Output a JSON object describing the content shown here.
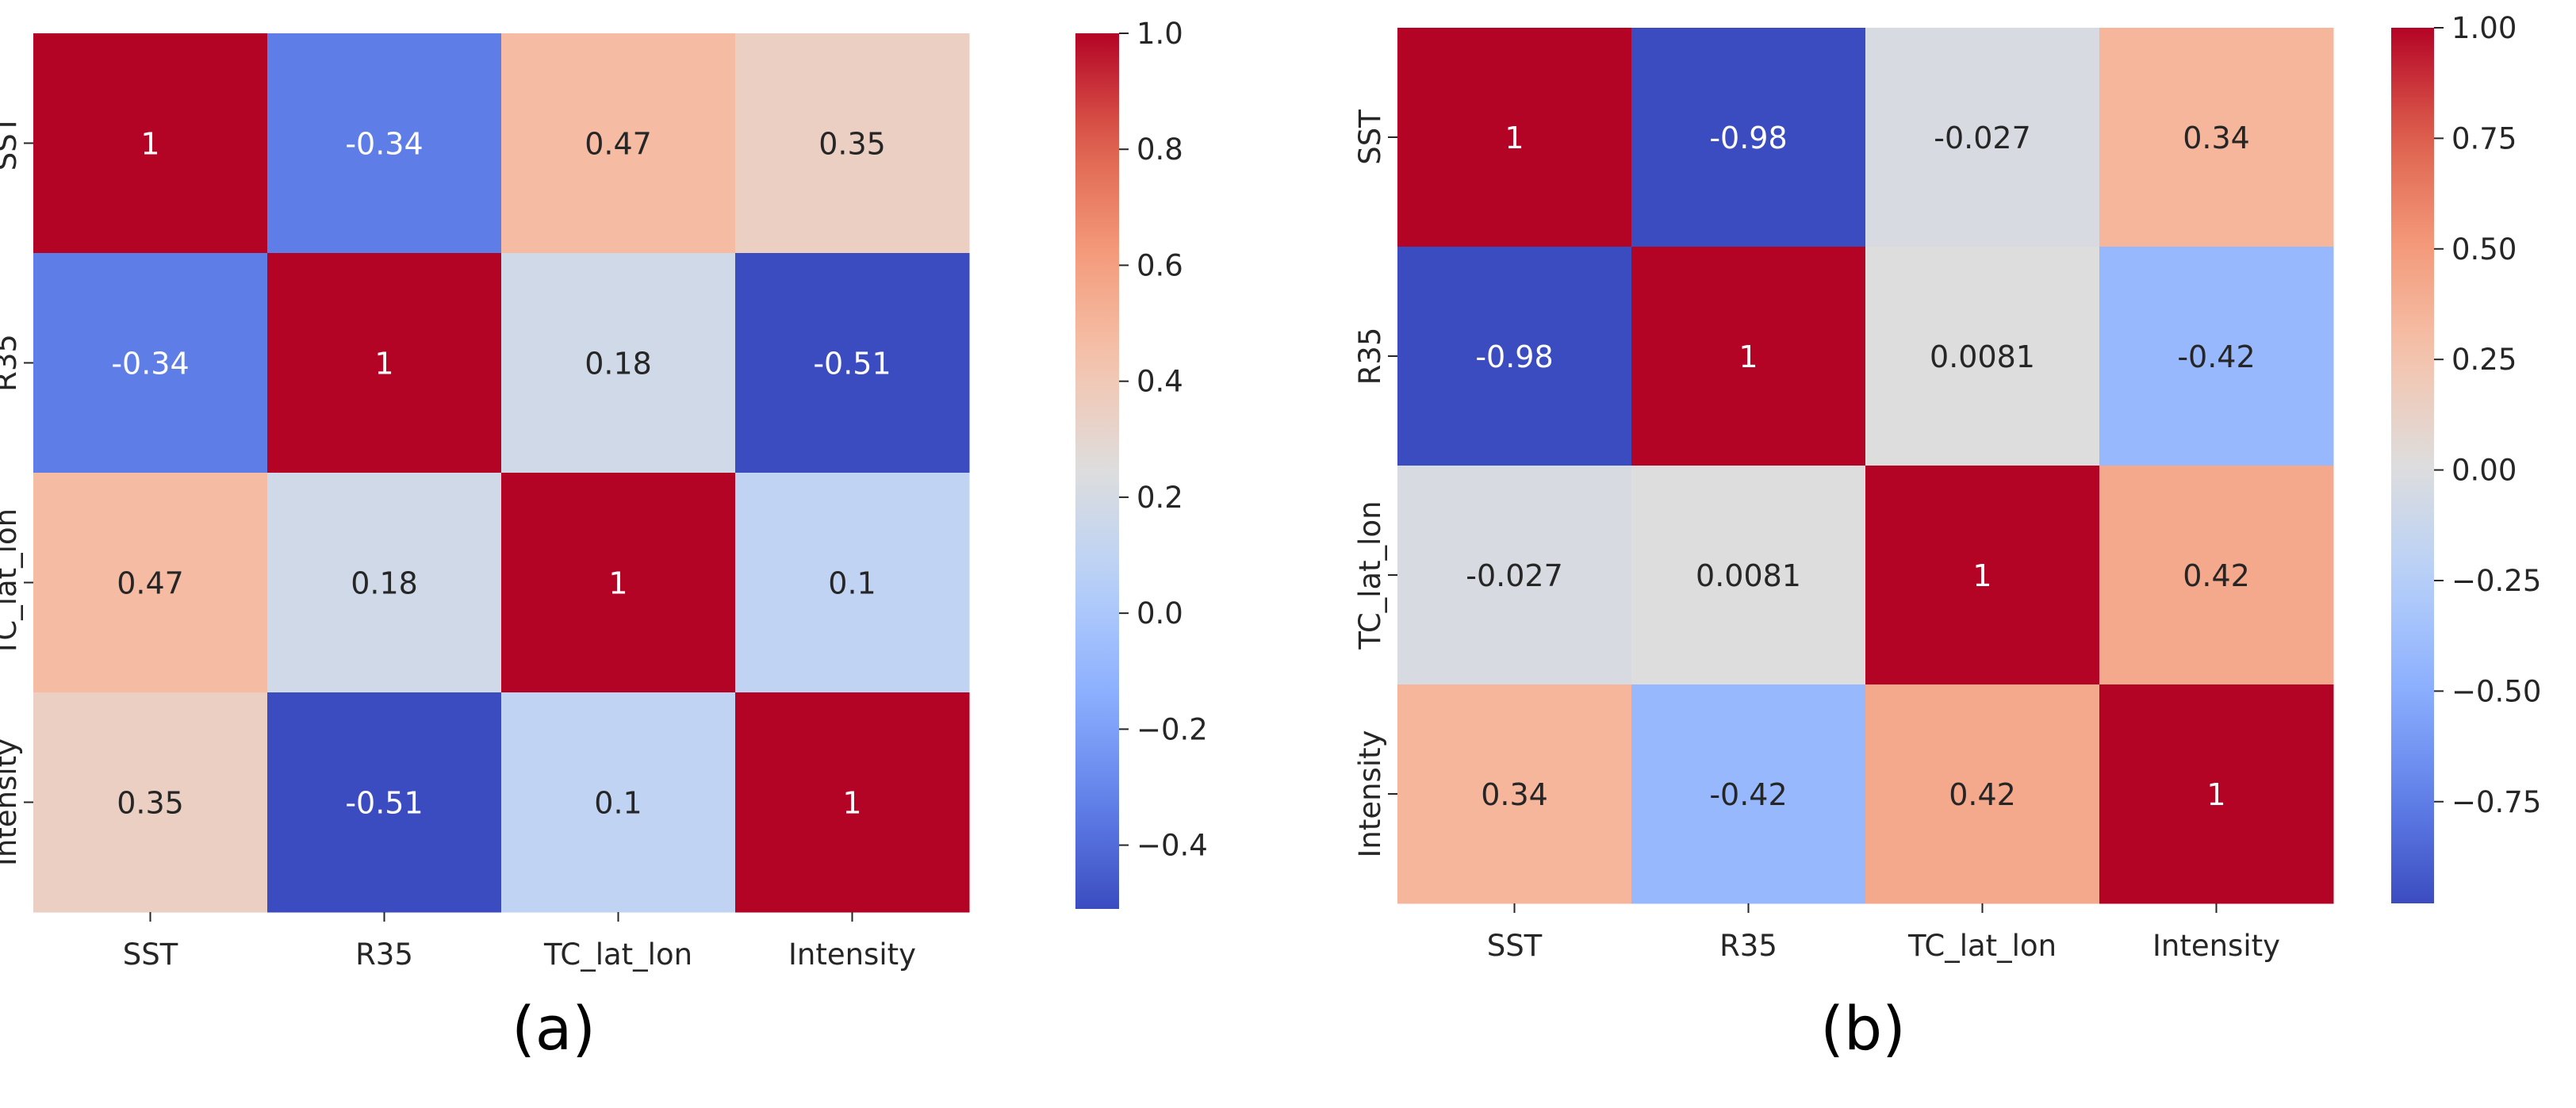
{
  "chart_data": [
    {
      "type": "heatmap",
      "panel_label": "(a)",
      "title": "",
      "rows": [
        "SST",
        "R35",
        "TC_lat_lon",
        "Intensity"
      ],
      "columns": [
        "SST",
        "R35",
        "TC_lat_lon",
        "Intensity"
      ],
      "values": [
        [
          1,
          -0.34,
          0.47,
          0.35
        ],
        [
          -0.34,
          1,
          0.18,
          -0.51
        ],
        [
          0.47,
          0.18,
          1,
          0.1
        ],
        [
          0.35,
          -0.51,
          0.1,
          1
        ]
      ],
      "annotations": [
        [
          "1",
          "-0.34",
          "0.47",
          "0.35"
        ],
        [
          "-0.34",
          "1",
          "0.18",
          "-0.51"
        ],
        [
          "0.47",
          "0.18",
          "1",
          "0.1"
        ],
        [
          "0.35",
          "-0.51",
          "0.1",
          "1"
        ]
      ],
      "colormap": "coolwarm",
      "vmin": -0.51,
      "vmax": 1.0,
      "colorbar_ticks": [
        1.0,
        0.8,
        0.6,
        0.4,
        0.2,
        0.0,
        -0.2,
        -0.4
      ],
      "colorbar_tick_labels": [
        "1.0",
        "0.8",
        "0.6",
        "0.4",
        "0.2",
        "0.0",
        "−0.2",
        "−0.4"
      ]
    },
    {
      "type": "heatmap",
      "panel_label": "(b)",
      "title": "",
      "rows": [
        "SST",
        "R35",
        "TC_lat_lon",
        "Intensity"
      ],
      "columns": [
        "SST",
        "R35",
        "TC_lat_lon",
        "Intensity"
      ],
      "values": [
        [
          1,
          -0.98,
          -0.027,
          0.34
        ],
        [
          -0.98,
          1,
          0.0081,
          -0.42
        ],
        [
          -0.027,
          0.0081,
          1,
          0.42
        ],
        [
          0.34,
          -0.42,
          0.42,
          1
        ]
      ],
      "annotations": [
        [
          "1",
          "-0.98",
          "-0.027",
          "0.34"
        ],
        [
          "-0.98",
          "1",
          "0.0081",
          "-0.42"
        ],
        [
          "-0.027",
          "0.0081",
          "1",
          "0.42"
        ],
        [
          "0.34",
          "-0.42",
          "0.42",
          "1"
        ]
      ],
      "colormap": "coolwarm",
      "vmin": -0.98,
      "vmax": 1.0,
      "colorbar_ticks": [
        1.0,
        0.75,
        0.5,
        0.25,
        0.0,
        -0.25,
        -0.5,
        -0.75
      ],
      "colorbar_tick_labels": [
        "1.00",
        "0.75",
        "0.50",
        "0.25",
        "0.00",
        "−0.25",
        "−0.50",
        "−0.75"
      ]
    }
  ]
}
